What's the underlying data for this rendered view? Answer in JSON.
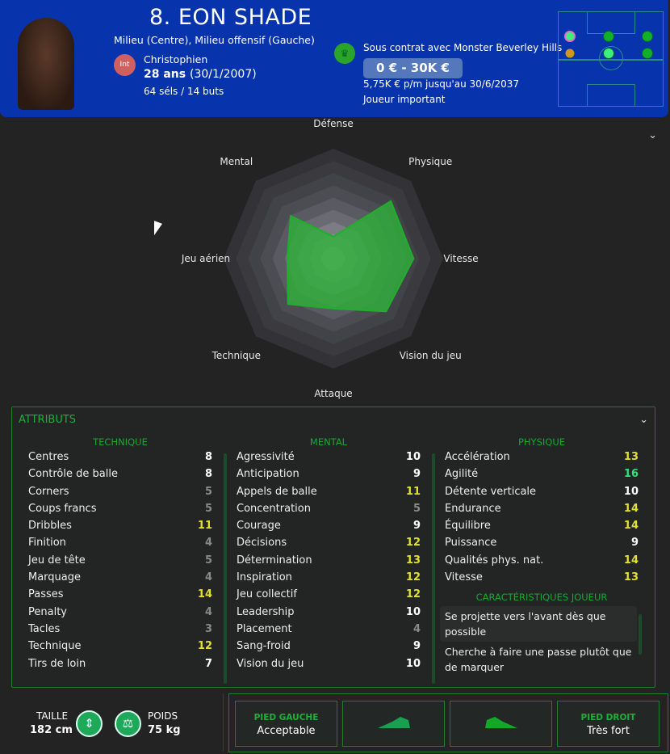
{
  "header": {
    "name": "8. EON SHADE",
    "positions": "Milieu (Centre), Milieu offensif (Gauche)",
    "int_badge": "Int",
    "nationality": "Christophien",
    "age": "28 ans",
    "dob": "(30/1/2007)",
    "apps": "64 séls / 14 buts",
    "contract": "Sous contrat avec Monster Beverley Hills",
    "wage_range": "0 € - 30K €",
    "wage": "5,75K € p/m jusqu'au 30/6/2037",
    "status": "Joueur important",
    "colors": {
      "bg": "#0734ad"
    }
  },
  "chart_data": {
    "type": "radar",
    "axes": [
      "Défense",
      "Physique",
      "Vitesse",
      "Vision du jeu",
      "Attaque",
      "Technique",
      "Jeu aérien",
      "Mental"
    ],
    "values": [
      4,
      14.8,
      14.6,
      13.6,
      9.1,
      11.7,
      8.4,
      11
    ],
    "range": [
      0,
      20
    ],
    "color": "#2eb03a"
  },
  "attributes": {
    "title": "ATTRIBUTS",
    "technique": {
      "title": "TECHNIQUE",
      "rows": [
        [
          "Centres",
          8
        ],
        [
          "Contrôle de balle",
          8
        ],
        [
          "Corners",
          5
        ],
        [
          "Coups francs",
          5
        ],
        [
          "Dribbles",
          11
        ],
        [
          "Finition",
          4
        ],
        [
          "Jeu de tête",
          5
        ],
        [
          "Marquage",
          4
        ],
        [
          "Passes",
          14
        ],
        [
          "Penalty",
          4
        ],
        [
          "Tacles",
          3
        ],
        [
          "Technique",
          12
        ],
        [
          "Tirs de loin",
          7
        ]
      ]
    },
    "mental": {
      "title": "MENTAL",
      "rows": [
        [
          "Agressivité",
          10
        ],
        [
          "Anticipation",
          9
        ],
        [
          "Appels de balle",
          11
        ],
        [
          "Concentration",
          5
        ],
        [
          "Courage",
          9
        ],
        [
          "Décisions",
          12
        ],
        [
          "Détermination",
          13
        ],
        [
          "Inspiration",
          12
        ],
        [
          "Jeu collectif",
          12
        ],
        [
          "Leadership",
          10
        ],
        [
          "Placement",
          4
        ],
        [
          "Sang-froid",
          9
        ],
        [
          "Vision du jeu",
          10
        ]
      ]
    },
    "physique": {
      "title": "PHYSIQUE",
      "rows": [
        [
          "Accélération",
          13
        ],
        [
          "Agilité",
          16
        ],
        [
          "Détente verticale",
          10
        ],
        [
          "Endurance",
          14
        ],
        [
          "Équilibre",
          14
        ],
        [
          "Puissance",
          9
        ],
        [
          "Qualités phys. nat.",
          14
        ],
        [
          "Vitesse",
          13
        ]
      ]
    },
    "traits": {
      "title": "CARACTÉRISTIQUES JOUEUR",
      "items": [
        "Se projette vers l'avant dès que possible",
        "Cherche à faire une passe plutôt que de marquer"
      ]
    }
  },
  "body": {
    "height_label": "TAILLE",
    "height": "182 cm",
    "weight_label": "POIDS",
    "weight": "75 kg"
  },
  "feet": {
    "left_label": "PIED GAUCHE",
    "left": "Acceptable",
    "right_label": "PIED DROIT",
    "right": "Très fort"
  }
}
